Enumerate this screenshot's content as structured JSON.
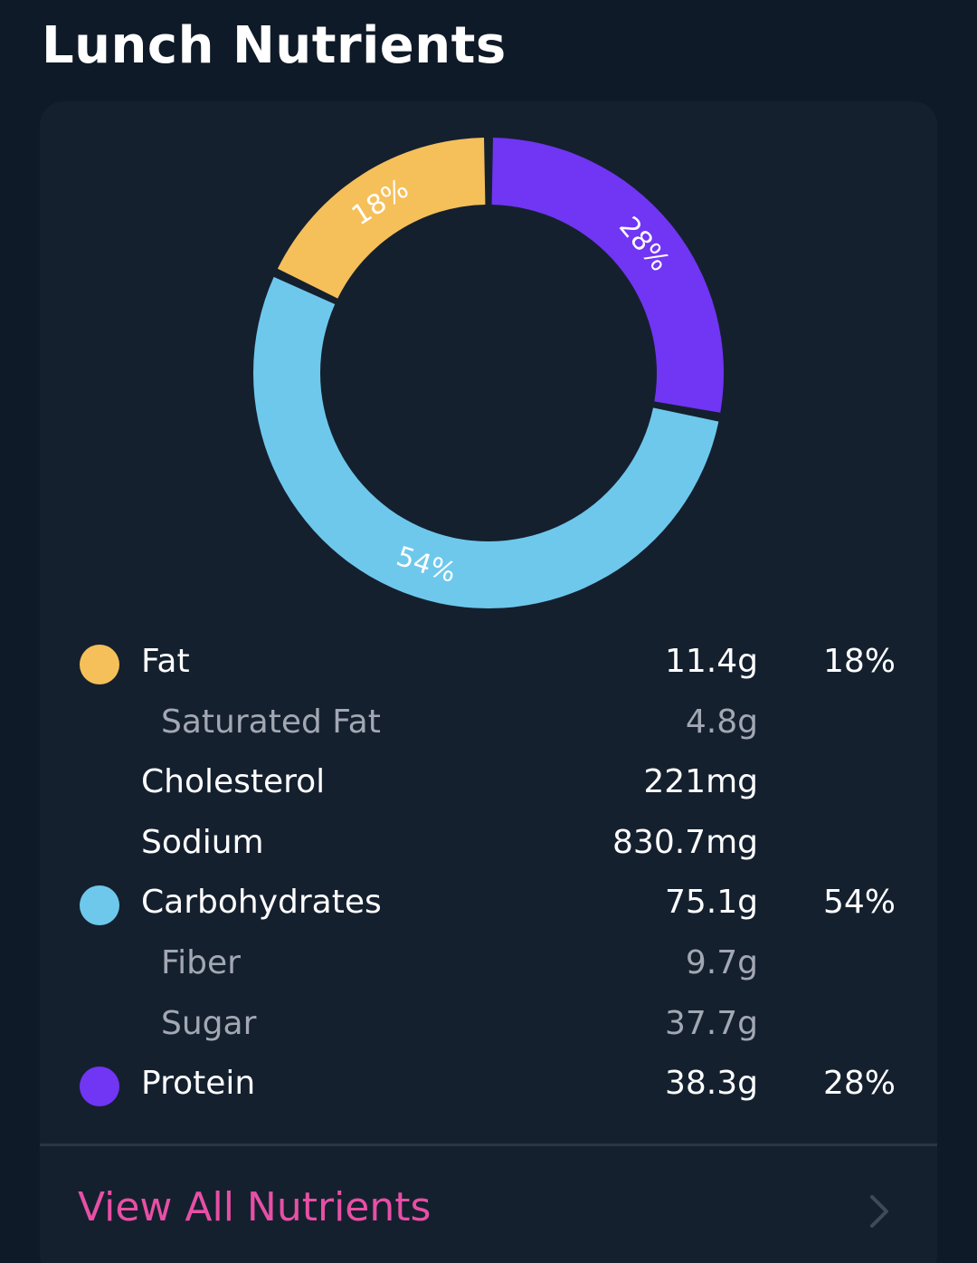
{
  "header": {
    "title": "Lunch Nutrients"
  },
  "chart_data": {
    "type": "pie",
    "slices": [
      {
        "label": "Protein",
        "value": 28,
        "label_text": "28%",
        "color": "#7135f4"
      },
      {
        "label": "Carbohydrates",
        "value": 54,
        "label_text": "54%",
        "color": "#6ec8ec"
      },
      {
        "label": "Fat",
        "value": 18,
        "label_text": "18%",
        "color": "#f5c05a"
      }
    ]
  },
  "nutrients": [
    {
      "name": "Fat",
      "amount": "11.4g",
      "percent": "18%",
      "dot_color": "#f5c05a",
      "sub": false
    },
    {
      "name": "Saturated Fat",
      "amount": "4.8g",
      "percent": "",
      "dot_color": "",
      "sub": true
    },
    {
      "name": "Cholesterol",
      "amount": "221mg",
      "percent": "",
      "dot_color": "",
      "sub": false
    },
    {
      "name": "Sodium",
      "amount": "830.7mg",
      "percent": "",
      "dot_color": "",
      "sub": false
    },
    {
      "name": "Carbohydrates",
      "amount": "75.1g",
      "percent": "54%",
      "dot_color": "#6ec8ec",
      "sub": false
    },
    {
      "name": "Fiber",
      "amount": "9.7g",
      "percent": "",
      "dot_color": "",
      "sub": true
    },
    {
      "name": "Sugar",
      "amount": "37.7g",
      "percent": "",
      "dot_color": "",
      "sub": true
    },
    {
      "name": "Protein",
      "amount": "38.3g",
      "percent": "28%",
      "dot_color": "#7135f4",
      "sub": false
    }
  ],
  "footer": {
    "link_label": "View All Nutrients",
    "icon": "chevron-right-icon",
    "link_color": "#e84fa5"
  }
}
